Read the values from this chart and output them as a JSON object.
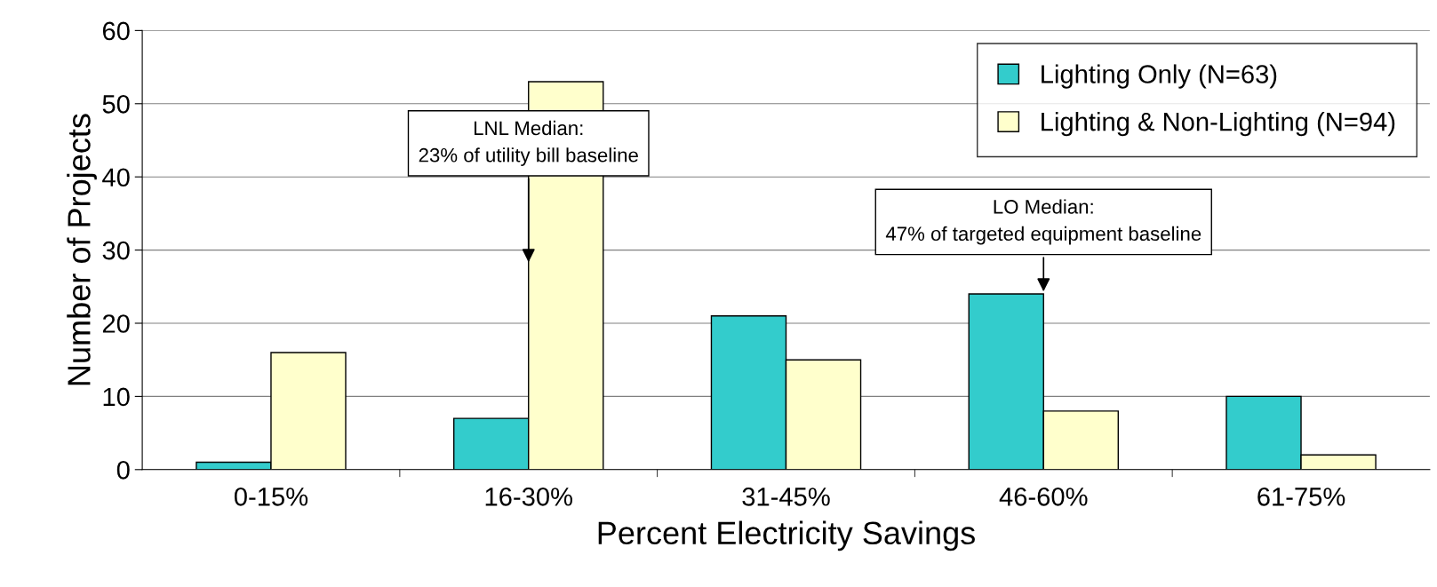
{
  "chart_data": {
    "type": "bar",
    "xlabel": "Percent Electricity Savings",
    "ylabel": "Number of Projects",
    "categories": [
      "0-15%",
      "16-30%",
      "31-45%",
      "46-60%",
      "61-75%"
    ],
    "series": [
      {
        "name": "Lighting Only (N=63)",
        "color": "#33cccc",
        "values": [
          1,
          7,
          21,
          24,
          10
        ]
      },
      {
        "name": "Lighting & Non-Lighting (N=94)",
        "color": "#ffffcc",
        "values": [
          16,
          53,
          15,
          8,
          2
        ]
      }
    ],
    "ylim": [
      0,
      60
    ],
    "yticks": [
      0,
      10,
      20,
      30,
      40,
      50,
      60
    ],
    "grid": "y",
    "legend": "top right",
    "annotations": [
      {
        "text": "LNL Median:\n23% of utility bill baseline",
        "x": "16-30%",
        "y": 28
      },
      {
        "text": "LO Median:\n47% of targeted equipment baseline",
        "x": "46-60%",
        "y": 24
      }
    ]
  }
}
